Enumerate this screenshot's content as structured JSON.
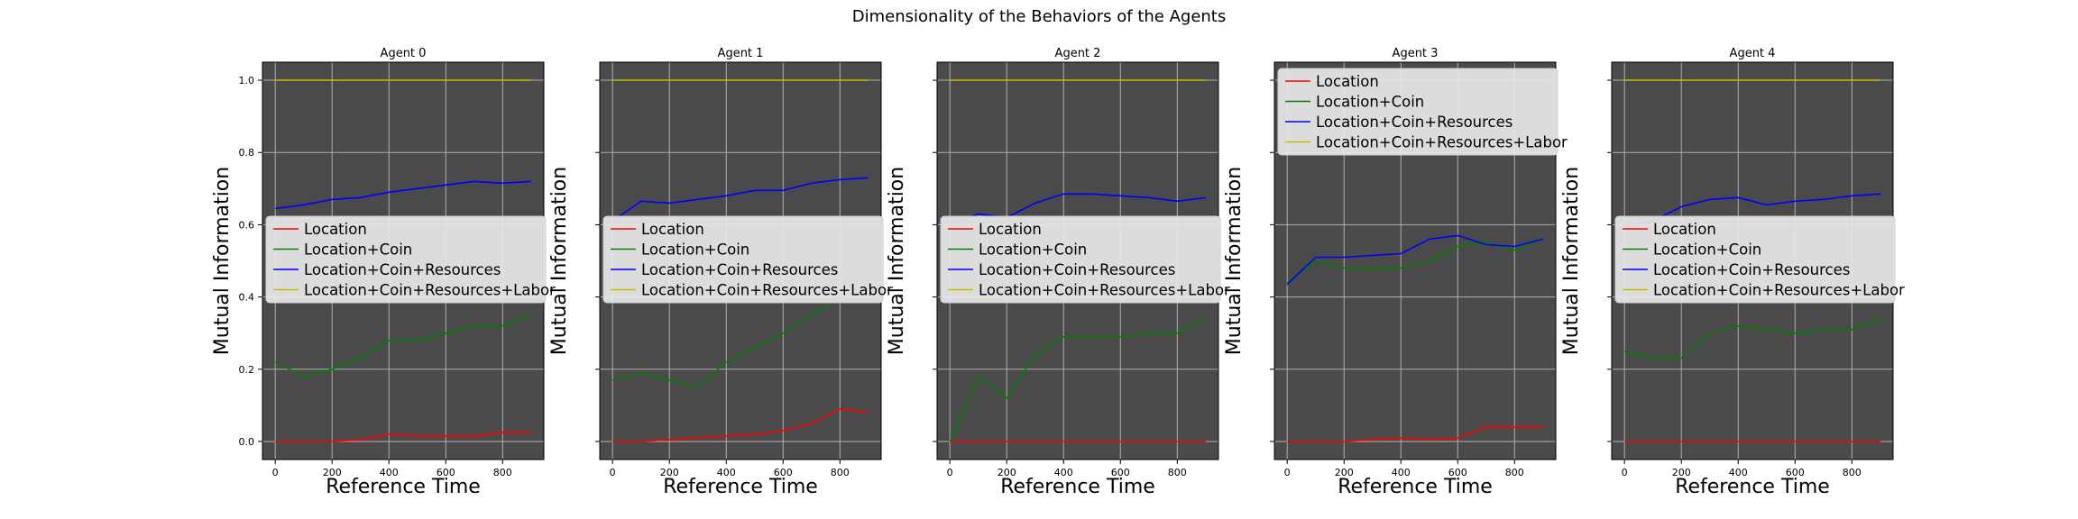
{
  "suptitle": "Dimensionality of the Behaviors of the Agents",
  "legend_labels": [
    "Location",
    "Location+Coin",
    "Location+Coin+Resources",
    "Location+Coin+Resources+Labor"
  ],
  "colors": {
    "Location": "#ff0000",
    "Location+Coin": "#008000",
    "Location+Coin+Resources": "#0000ff",
    "Location+Coin+Resources+Labor": "#bfbf00",
    "plot_background": "#4a4a4a",
    "grid": "#b0b0b0"
  },
  "chart_data": [
    {
      "type": "line",
      "title": "Agent 0",
      "xlabel": "Reference Time",
      "ylabel": "Mutual Information",
      "x": [
        0,
        100,
        200,
        300,
        400,
        500,
        600,
        700,
        800,
        900
      ],
      "xlim": [
        -45,
        945
      ],
      "ylim": [
        -0.05,
        1.05
      ],
      "xticks": [
        0,
        200,
        400,
        600,
        800
      ],
      "yticks": [
        0.0,
        0.2,
        0.4,
        0.6,
        0.8,
        1.0
      ],
      "ytick_labels_shown": true,
      "grid": true,
      "legend_loc": "center-left",
      "series": [
        {
          "name": "Location",
          "values": [
            0.0,
            0.0,
            0.0,
            0.005,
            0.02,
            0.015,
            0.015,
            0.015,
            0.025,
            0.025
          ]
        },
        {
          "name": "Location+Coin",
          "values": [
            0.22,
            0.18,
            0.2,
            0.23,
            0.28,
            0.28,
            0.3,
            0.32,
            0.32,
            0.35
          ]
        },
        {
          "name": "Location+Coin+Resources",
          "values": [
            0.645,
            0.655,
            0.67,
            0.675,
            0.69,
            0.7,
            0.71,
            0.72,
            0.715,
            0.72
          ]
        },
        {
          "name": "Location+Coin+Resources+Labor",
          "values": [
            1.0,
            1.0,
            1.0,
            1.0,
            1.0,
            1.0,
            1.0,
            1.0,
            1.0,
            1.0
          ]
        }
      ]
    },
    {
      "type": "line",
      "title": "Agent 1",
      "xlabel": "Reference Time",
      "ylabel": "Mutual Information",
      "x": [
        0,
        100,
        200,
        300,
        400,
        500,
        600,
        700,
        800,
        900
      ],
      "xlim": [
        -45,
        945
      ],
      "ylim": [
        -0.05,
        1.05
      ],
      "xticks": [
        0,
        200,
        400,
        600,
        800
      ],
      "yticks": [
        0.0,
        0.2,
        0.4,
        0.6,
        0.8,
        1.0
      ],
      "ytick_labels_shown": false,
      "grid": true,
      "legend_loc": "center-left",
      "series": [
        {
          "name": "Location",
          "values": [
            0.0,
            0.0,
            0.005,
            0.01,
            0.015,
            0.02,
            0.03,
            0.05,
            0.09,
            0.08
          ]
        },
        {
          "name": "Location+Coin",
          "values": [
            0.17,
            0.19,
            0.17,
            0.15,
            0.22,
            0.26,
            0.3,
            0.35,
            0.4,
            0.42
          ]
        },
        {
          "name": "Location+Coin+Resources",
          "values": [
            0.61,
            0.665,
            0.66,
            0.67,
            0.68,
            0.695,
            0.695,
            0.715,
            0.725,
            0.73
          ]
        },
        {
          "name": "Location+Coin+Resources+Labor",
          "values": [
            1.0,
            1.0,
            1.0,
            1.0,
            1.0,
            1.0,
            1.0,
            1.0,
            1.0,
            1.0
          ]
        }
      ]
    },
    {
      "type": "line",
      "title": "Agent 2",
      "xlabel": "Reference Time",
      "ylabel": "Mutual Information",
      "x": [
        0,
        100,
        200,
        300,
        400,
        500,
        600,
        700,
        800,
        900
      ],
      "xlim": [
        -45,
        945
      ],
      "ylim": [
        -0.05,
        1.05
      ],
      "xticks": [
        0,
        200,
        400,
        600,
        800
      ],
      "yticks": [
        0.0,
        0.2,
        0.4,
        0.6,
        0.8,
        1.0
      ],
      "ytick_labels_shown": false,
      "grid": true,
      "legend_loc": "center-left",
      "series": [
        {
          "name": "Location",
          "values": [
            0.0,
            0.0,
            0.0,
            0.0,
            0.0,
            0.0,
            0.0,
            0.0,
            0.0,
            0.0
          ]
        },
        {
          "name": "Location+Coin",
          "values": [
            0.0,
            0.18,
            0.12,
            0.24,
            0.29,
            0.29,
            0.29,
            0.3,
            0.3,
            0.34
          ]
        },
        {
          "name": "Location+Coin+Resources",
          "values": [
            0.6,
            0.63,
            0.62,
            0.66,
            0.685,
            0.685,
            0.68,
            0.675,
            0.665,
            0.675
          ]
        },
        {
          "name": "Location+Coin+Resources+Labor",
          "values": [
            1.0,
            1.0,
            1.0,
            1.0,
            1.0,
            1.0,
            1.0,
            1.0,
            1.0,
            1.0
          ]
        }
      ]
    },
    {
      "type": "line",
      "title": "Agent 3",
      "xlabel": "Reference Time",
      "ylabel": "Mutual Information",
      "x": [
        0,
        100,
        200,
        300,
        400,
        500,
        600,
        700,
        800,
        900
      ],
      "xlim": [
        -45,
        945
      ],
      "ylim": [
        -0.05,
        1.05
      ],
      "xticks": [
        0,
        200,
        400,
        600,
        800
      ],
      "yticks": [
        0.0,
        0.2,
        0.4,
        0.6,
        0.8,
        1.0
      ],
      "ytick_labels_shown": false,
      "grid": true,
      "legend_loc": "top-left",
      "series": [
        {
          "name": "Location",
          "values": [
            0.0,
            0.0,
            0.0,
            0.005,
            0.01,
            0.005,
            0.01,
            0.04,
            0.04,
            0.04
          ]
        },
        {
          "name": "Location+Coin",
          "values": [
            0.44,
            0.5,
            0.48,
            0.48,
            0.48,
            0.5,
            0.54,
            0.55,
            0.53,
            0.56
          ]
        },
        {
          "name": "Location+Coin+Resources",
          "values": [
            0.435,
            0.51,
            0.51,
            0.515,
            0.52,
            0.56,
            0.57,
            0.545,
            0.54,
            0.56
          ]
        },
        {
          "name": "Location+Coin+Resources+Labor",
          "values": [
            1.0,
            1.0,
            1.0,
            1.0,
            1.0,
            1.0,
            1.0,
            1.0,
            1.0,
            1.0
          ]
        }
      ]
    },
    {
      "type": "line",
      "title": "Agent 4",
      "xlabel": "Reference Time",
      "ylabel": "Mutual Information",
      "x": [
        0,
        100,
        200,
        300,
        400,
        500,
        600,
        700,
        800,
        900
      ],
      "xlim": [
        -45,
        945
      ],
      "ylim": [
        -0.05,
        1.05
      ],
      "xticks": [
        0,
        200,
        400,
        600,
        800
      ],
      "yticks": [
        0.0,
        0.2,
        0.4,
        0.6,
        0.8,
        1.0
      ],
      "ytick_labels_shown": false,
      "grid": true,
      "legend_loc": "center-left",
      "series": [
        {
          "name": "Location",
          "values": [
            0.0,
            0.0,
            0.0,
            0.0,
            0.0,
            0.0,
            0.0,
            0.0,
            0.0,
            0.0
          ]
        },
        {
          "name": "Location+Coin",
          "values": [
            0.25,
            0.23,
            0.23,
            0.3,
            0.32,
            0.31,
            0.3,
            0.31,
            0.31,
            0.34
          ]
        },
        {
          "name": "Location+Coin+Resources",
          "values": [
            0.6,
            0.61,
            0.65,
            0.67,
            0.675,
            0.655,
            0.665,
            0.67,
            0.68,
            0.685
          ]
        },
        {
          "name": "Location+Coin+Resources+Labor",
          "values": [
            1.0,
            1.0,
            1.0,
            1.0,
            1.0,
            1.0,
            1.0,
            1.0,
            1.0,
            1.0
          ]
        }
      ]
    }
  ]
}
